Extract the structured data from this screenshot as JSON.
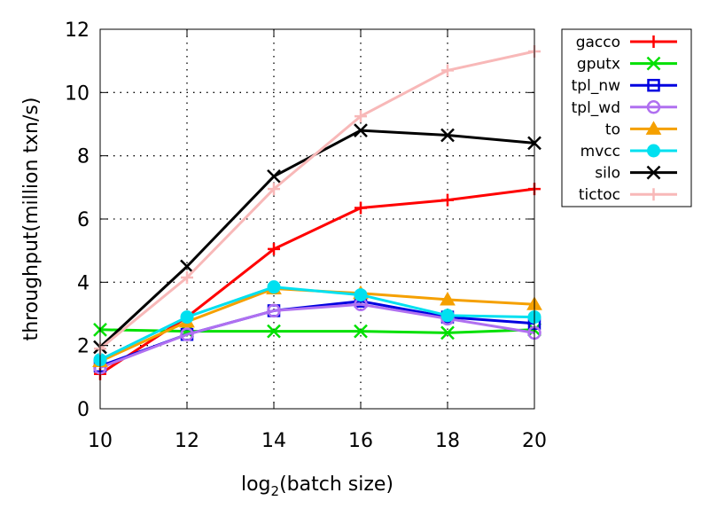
{
  "chart_data": {
    "type": "line",
    "title": "",
    "xlabel_prefix": "log",
    "xlabel_sub": "2",
    "xlabel_suffix": "(batch size)",
    "ylabel": "throughput(million txn/s)",
    "x": [
      10,
      12,
      14,
      16,
      18,
      20
    ],
    "xlim": [
      10,
      20
    ],
    "ylim": [
      0,
      12
    ],
    "xticks": [
      10,
      12,
      14,
      16,
      18,
      20
    ],
    "yticks": [
      0,
      2,
      4,
      6,
      8,
      10,
      12
    ],
    "grid": true,
    "legend_position": "outside-right",
    "series": [
      {
        "name": "gacco",
        "color": "#ff0000",
        "marker": "plus",
        "values": [
          1.1,
          2.9,
          5.05,
          6.35,
          6.6,
          6.95
        ]
      },
      {
        "name": "gputx",
        "color": "#00e000",
        "marker": "x",
        "values": [
          2.5,
          2.45,
          2.45,
          2.45,
          2.4,
          2.5
        ]
      },
      {
        "name": "tpl_nw",
        "color": "#0000e0",
        "marker": "open-square",
        "values": [
          1.35,
          2.35,
          3.1,
          3.4,
          2.9,
          2.7
        ]
      },
      {
        "name": "tpl_wd",
        "color": "#b070f0",
        "marker": "open-circle",
        "values": [
          1.3,
          2.35,
          3.1,
          3.3,
          2.85,
          2.4
        ]
      },
      {
        "name": "to",
        "color": "#f5a000",
        "marker": "filled-triangle",
        "values": [
          1.5,
          2.75,
          3.8,
          3.65,
          3.45,
          3.3
        ]
      },
      {
        "name": "mvcc",
        "color": "#00e0f0",
        "marker": "filled-circle",
        "values": [
          1.55,
          2.9,
          3.85,
          3.6,
          2.95,
          2.9
        ]
      },
      {
        "name": "silo",
        "color": "#000000",
        "marker": "x",
        "values": [
          1.95,
          4.5,
          7.35,
          8.8,
          8.65,
          8.4
        ]
      },
      {
        "name": "tictoc",
        "color": "#f8b8b8",
        "marker": "plus",
        "values": [
          1.9,
          4.15,
          6.95,
          9.25,
          10.7,
          11.3
        ]
      }
    ]
  }
}
